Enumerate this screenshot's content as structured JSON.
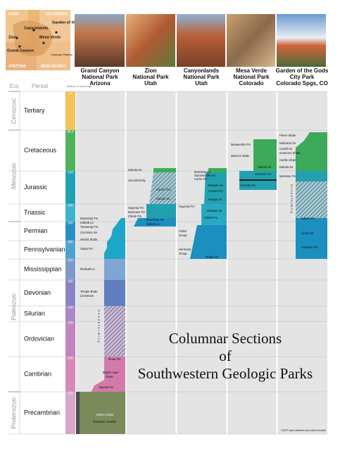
{
  "map": {
    "labels": [
      "Canyonlands",
      "Zion",
      "Grand Canyon",
      "Mesa Verde",
      "Garden of the Gods",
      "COLORADO",
      "UTAH",
      "ARIZONA",
      "NEW MEXICO",
      "Colorado Plateau"
    ]
  },
  "parks": [
    {
      "lines": [
        "Grand Canyon",
        "National Park",
        "Arizona"
      ]
    },
    {
      "lines": [
        "Zion",
        "National Park",
        "Utah"
      ]
    },
    {
      "lines": [
        "Canyonlands",
        "National Park",
        "Utah"
      ]
    },
    {
      "lines": [
        "Mesa Verde",
        "National Park",
        "Colorado"
      ]
    },
    {
      "lines": [
        "Garden of the Gods",
        "City Park",
        "Colorado Spgs, CO"
      ]
    }
  ],
  "header": {
    "era": "Era",
    "period": "Period",
    "age": "Millions of Years Ago"
  },
  "eras": [
    "Cenozoic",
    "Mesozoic",
    "Paleozoic",
    "Proterozoic"
  ],
  "periods": [
    "Tertiary",
    "Cretaceous",
    "Jurassic",
    "Triassic",
    "Permian",
    "Pennsylvanian",
    "Mississippian",
    "Devonian",
    "Silurian",
    "Ordovician",
    "Cambrian",
    "Precambrian"
  ],
  "ages": [
    "1.6",
    "66.4",
    "144",
    "208",
    "245",
    "286",
    "320",
    "360",
    "408",
    "438",
    "505",
    "570"
  ],
  "formations": {
    "grand_canyon": [
      "Moenkopi Fm",
      "Kaibab Ls",
      "Toroweap Fm",
      "Coconino Ss",
      "Hermit Shale",
      "Supai Fm",
      "Redwall Ls",
      "Temple Butte",
      "Limestone",
      "Unconformity",
      "Muav Fm",
      "Bright Angel",
      "Shale",
      "Tapeats Ss",
      "Vishnu Schist",
      "Zoroaster Granite"
    ],
    "zion": [
      "Dakota Ss",
      "Unconformity",
      "Carmel Fm",
      "Navajo Ss",
      "Kayenta Fm",
      "Moenave Fm",
      "Chinle Fm",
      "Moenkopi Fm",
      "Kaibab Ls"
    ],
    "canyonlands": [
      "Morrison Fm",
      "Summerville Fm",
      "Curtis Fm",
      "Entrada Ss",
      "Carmel Fm",
      "Navajo Ss",
      "Kayenta Fm",
      "Wingate Ss",
      "Chinle Fm",
      "Cutler",
      "Group",
      "Hermosa",
      "Group",
      "Molas Fm"
    ],
    "mesa_verde": [
      "Mesaverde Fm",
      "Mancos Shale",
      "Dakota Ss",
      "Morrison Fm",
      "Entrada Ss"
    ],
    "garden": [
      "Pierre Shale",
      "Niobrara Fm",
      "Codell Ss",
      "Graneros Shale",
      "Carlile Shale",
      "Dakota Ss",
      "Morrison Fm",
      "Unconformity",
      "Lykins Fm",
      "Lyons Ss",
      "Fountain Fm"
    ]
  },
  "title": [
    "Columnar Sections",
    "of",
    "Southwestern Geologic Parks"
  ],
  "copyright": "©2007 dave wellerton and robert housiek"
}
